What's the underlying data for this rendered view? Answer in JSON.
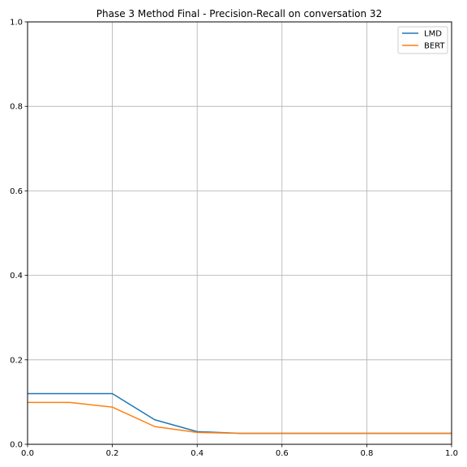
{
  "chart_data": {
    "type": "line",
    "title": "Phase 3 Method Final - Precision-Recall on conversation 32",
    "xlabel": "",
    "ylabel": "",
    "xlim": [
      0,
      1
    ],
    "ylim": [
      0,
      1
    ],
    "x_ticks": [
      "0.0",
      "0.2",
      "0.4",
      "0.6",
      "0.8",
      "1.0"
    ],
    "y_ticks": [
      "0.0",
      "0.2",
      "0.4",
      "0.6",
      "0.8",
      "1.0"
    ],
    "grid": true,
    "legend_position": "top-right",
    "x": [
      0.0,
      0.1,
      0.2,
      0.3,
      0.4,
      0.5,
      0.6,
      0.7,
      0.8,
      0.9,
      1.0
    ],
    "series": [
      {
        "name": "LMD",
        "color": "#1f77b4",
        "values": [
          0.12,
          0.12,
          0.12,
          0.058,
          0.03,
          0.026,
          0.026,
          0.026,
          0.026,
          0.026,
          0.026
        ]
      },
      {
        "name": "BERT",
        "color": "#ff7f0e",
        "values": [
          0.099,
          0.099,
          0.088,
          0.042,
          0.028,
          0.026,
          0.026,
          0.026,
          0.026,
          0.026,
          0.026
        ]
      }
    ]
  }
}
